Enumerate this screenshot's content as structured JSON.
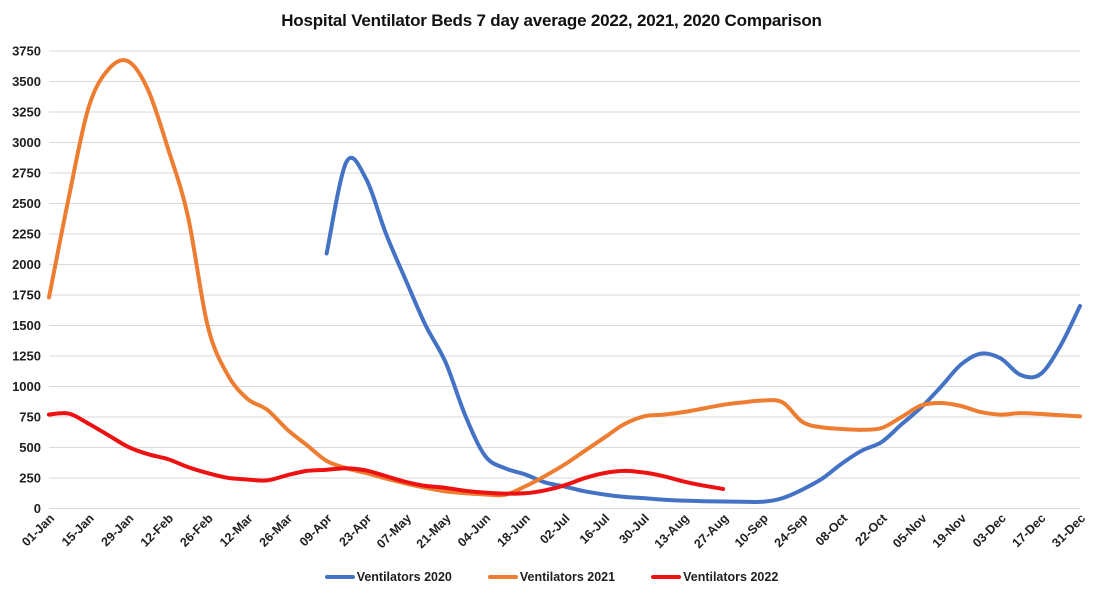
{
  "chart_data": {
    "type": "line",
    "title": "Hospital Ventilator Beds 7 day average 2022, 2021, 2020 Comparison",
    "xlabel": "",
    "ylabel": "",
    "ylim": [
      0,
      3750
    ],
    "y_ticks": [
      0,
      250,
      500,
      750,
      1000,
      1250,
      1500,
      1750,
      2000,
      2250,
      2500,
      2750,
      3000,
      3250,
      3500,
      3750
    ],
    "x_tick_labels": [
      "01-Jan",
      "15-Jan",
      "29-Jan",
      "12-Feb",
      "26-Feb",
      "12-Mar",
      "26-Mar",
      "09-Apr",
      "23-Apr",
      "07-May",
      "21-May",
      "04-Jun",
      "18-Jun",
      "02-Jul",
      "16-Jul",
      "30-Jul",
      "13-Aug",
      "27-Aug",
      "10-Sep",
      "24-Sep",
      "08-Oct",
      "22-Oct",
      "05-Nov",
      "19-Nov",
      "03-Dec",
      "17-Dec",
      "31-Dec"
    ],
    "x_tick_interval_days": 14,
    "x_max_day": 364,
    "grid": "horizontal",
    "gridline_color": "#d9d9d9",
    "text_color": "#1f1f1f",
    "background": "#ffffff",
    "legend_position": "bottom",
    "series": [
      {
        "name": "Ventilators 2020",
        "color": "#4472C4",
        "start_day": 98,
        "step_days": 7,
        "values": [
          2090,
          2840,
          2700,
          2250,
          1870,
          1500,
          1200,
          760,
          430,
          330,
          280,
          215,
          180,
          142,
          115,
          95,
          85,
          72,
          65,
          60,
          57,
          55,
          55,
          85,
          155,
          245,
          370,
          475,
          545,
          690,
          830,
          1000,
          1180,
          1270,
          1230,
          1095,
          1100,
          1330,
          1660
        ]
      },
      {
        "name": "Ventilators 2021",
        "color": "#ED7D31",
        "start_day": 0,
        "step_days": 7,
        "values": [
          1730,
          2550,
          3290,
          3600,
          3665,
          3430,
          2950,
          2400,
          1500,
          1100,
          900,
          810,
          650,
          520,
          390,
          330,
          290,
          245,
          205,
          170,
          140,
          125,
          115,
          112,
          180,
          265,
          360,
          470,
          580,
          690,
          755,
          770,
          790,
          820,
          850,
          870,
          885,
          870,
          710,
          665,
          652,
          645,
          660,
          750,
          845,
          865,
          840,
          790,
          770,
          782,
          775,
          765,
          755
        ]
      },
      {
        "name": "Ventilators 2022",
        "color": "#EE1111",
        "start_day": 0,
        "step_days": 7,
        "values": [
          770,
          778,
          695,
          600,
          505,
          445,
          405,
          340,
          290,
          252,
          238,
          230,
          272,
          308,
          318,
          330,
          312,
          265,
          218,
          185,
          170,
          145,
          130,
          122,
          125,
          148,
          190,
          248,
          290,
          308,
          295,
          265,
          222,
          188,
          160
        ]
      }
    ]
  }
}
